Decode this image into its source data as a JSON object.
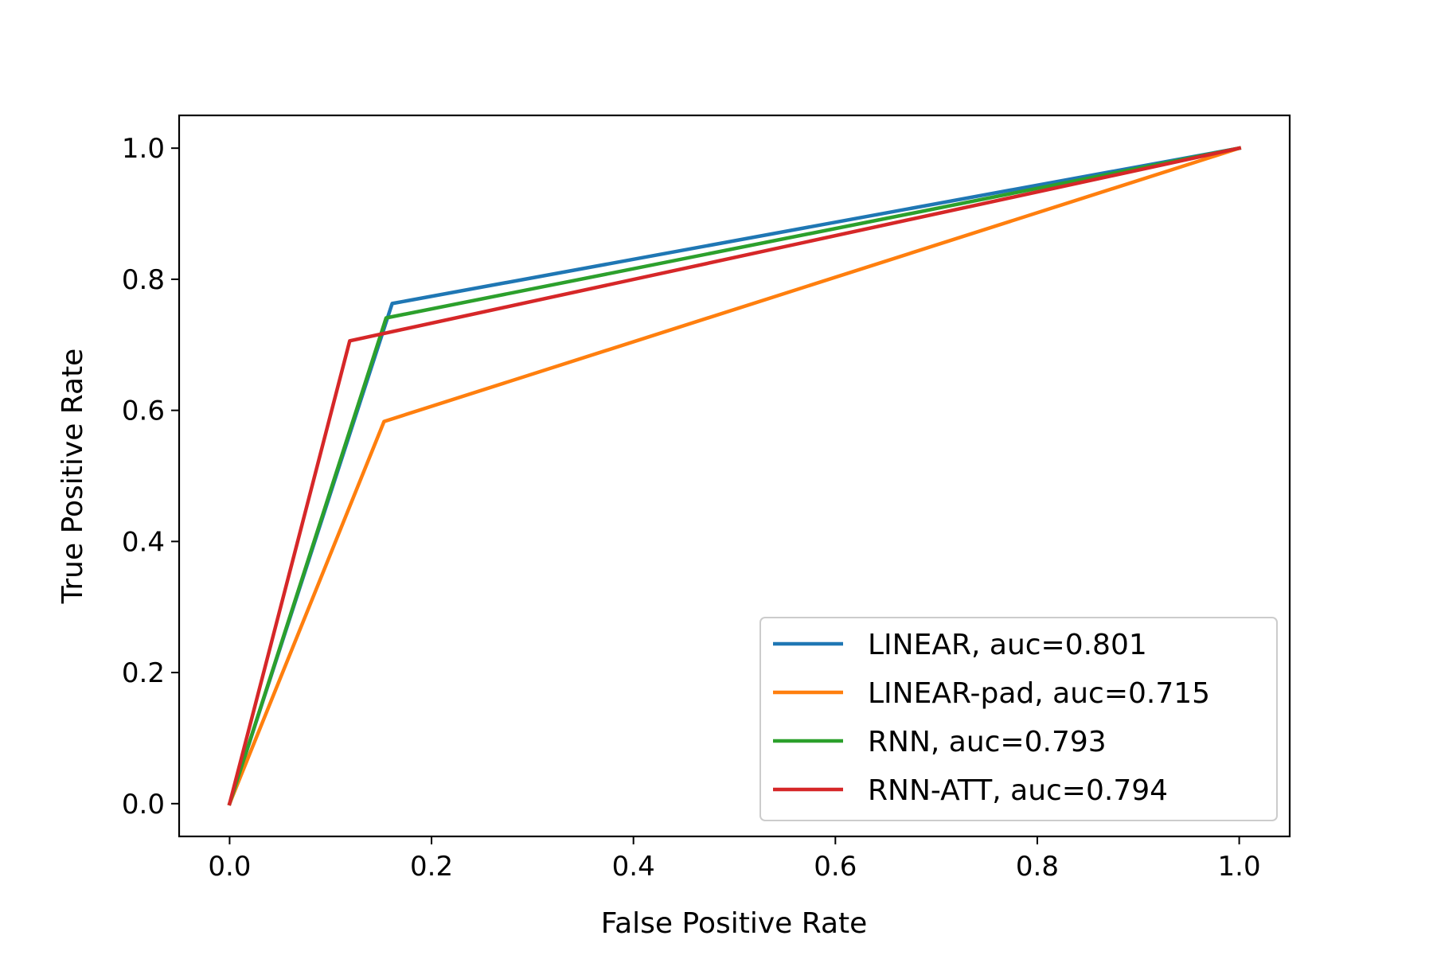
{
  "chart_data": {
    "type": "line",
    "title": "",
    "xlabel": "False Positive Rate",
    "ylabel": "True Positive Rate",
    "xlim": [
      -0.05,
      1.05
    ],
    "ylim": [
      -0.05,
      1.05
    ],
    "xticks": [
      0.0,
      0.2,
      0.4,
      0.6,
      0.8,
      1.0
    ],
    "yticks": [
      0.0,
      0.2,
      0.4,
      0.6,
      0.8,
      1.0
    ],
    "xtick_labels": [
      "0.0",
      "0.2",
      "0.4",
      "0.6",
      "0.8",
      "1.0"
    ],
    "ytick_labels": [
      "0.0",
      "0.2",
      "0.4",
      "0.6",
      "0.8",
      "1.0"
    ],
    "grid": false,
    "legend_position": "lower right",
    "series": [
      {
        "name": "LINEAR, auc=0.801",
        "color": "#1f77b4",
        "x": [
          0.0,
          0.161,
          1.0
        ],
        "y": [
          0.0,
          0.763,
          1.0
        ]
      },
      {
        "name": "LINEAR-pad, auc=0.715",
        "color": "#ff7f0e",
        "x": [
          0.0,
          0.153,
          1.0
        ],
        "y": [
          0.0,
          0.583,
          1.0
        ]
      },
      {
        "name": "RNN, auc=0.793",
        "color": "#2ca02c",
        "x": [
          0.0,
          0.155,
          1.0
        ],
        "y": [
          0.0,
          0.741,
          1.0
        ]
      },
      {
        "name": "RNN-ATT, auc=0.794",
        "color": "#d62728",
        "x": [
          0.0,
          0.119,
          1.0
        ],
        "y": [
          0.0,
          0.706,
          1.0
        ]
      }
    ]
  }
}
